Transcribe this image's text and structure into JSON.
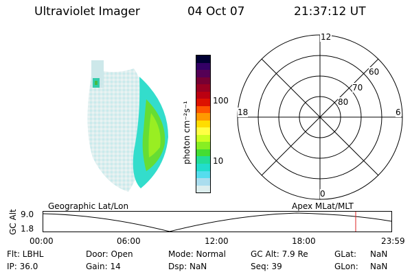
{
  "header": {
    "title": "Ultraviolet Imager",
    "date": "04 Oct 07",
    "time": "21:37:12 UT"
  },
  "colorbar": {
    "label": "photon cm⁻²s⁻¹",
    "ticks": [
      "100",
      "10"
    ],
    "colors": [
      "#000033",
      "#330066",
      "#550055",
      "#770033",
      "#990022",
      "#bb0011",
      "#dd1100",
      "#ff5500",
      "#ff9900",
      "#ffdd00",
      "#ffff44",
      "#ccff22",
      "#88ee22",
      "#44dd33",
      "#22dd99",
      "#22ddcc",
      "#55ddee",
      "#aaddee",
      "#ddeeee"
    ]
  },
  "polar": {
    "labels": {
      "top": "12",
      "left": "18",
      "right": "6",
      "bottom": "0"
    },
    "rings": [
      "60",
      "70",
      "80"
    ]
  },
  "timeline": {
    "left_label": "Geographic Lat/Lon",
    "right_label": "Apex  MLat/MLT",
    "axis_title": "GC Alt",
    "y_ticks": [
      "9.0",
      "1.8"
    ],
    "x_ticks": [
      "00:00",
      "06:00",
      "12:00",
      "18:00",
      "23:59"
    ]
  },
  "info": {
    "flt": "Flt: LBHL",
    "ip": "IP: 36.0",
    "door": "Door: Open",
    "gain": "Gain: 14",
    "mode": "Mode: Normal",
    "dsp": "Dsp:       NaN",
    "gcalt": "GC Alt: 7.9 Re",
    "seq": "Seq: 39",
    "glat_label": "GLat:",
    "glat_value": "NaN",
    "glon_label": "GLon:",
    "glon_value": "NaN"
  }
}
